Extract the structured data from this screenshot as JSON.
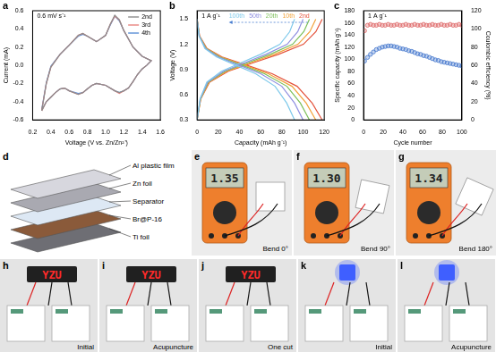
{
  "chart_data": [
    {
      "type": "line",
      "panel_label": "a",
      "annotation": "0.6 mV s⁻¹",
      "x_label": "Voltage (V vs. Zn/Zn²⁺)",
      "y_label": "Current (mA)",
      "x": [
        0.3,
        0.35,
        0.4,
        0.5,
        0.6,
        0.7,
        0.75,
        0.8,
        0.9,
        1.0,
        1.05,
        1.1,
        1.15,
        1.2,
        1.3,
        1.4,
        1.5,
        1.45,
        1.4,
        1.35,
        1.3,
        1.25,
        1.2,
        1.15,
        1.1,
        1.0,
        0.9,
        0.85,
        0.8,
        0.75,
        0.7,
        0.6,
        0.55,
        0.5,
        0.45,
        0.4,
        0.35,
        0.3
      ],
      "series": [
        {
          "name": "2nd",
          "color": "#8c8c8c",
          "values": [
            -0.5,
            -0.2,
            -0.02,
            0.12,
            0.22,
            0.33,
            0.35,
            0.32,
            0.26,
            0.33,
            0.45,
            0.55,
            0.5,
            0.38,
            0.2,
            0.1,
            0.05,
            0.0,
            -0.04,
            -0.1,
            -0.18,
            -0.25,
            -0.28,
            -0.3,
            -0.28,
            -0.22,
            -0.2,
            -0.22,
            -0.26,
            -0.3,
            -0.32,
            -0.28,
            -0.25,
            -0.26,
            -0.3,
            -0.35,
            -0.4,
            -0.5
          ]
        },
        {
          "name": "3rd",
          "color": "#e8837f",
          "values": [
            -0.49,
            -0.2,
            -0.02,
            0.12,
            0.22,
            0.33,
            0.35,
            0.32,
            0.26,
            0.33,
            0.45,
            0.54,
            0.5,
            0.38,
            0.2,
            0.1,
            0.05,
            0.0,
            -0.04,
            -0.1,
            -0.18,
            -0.25,
            -0.28,
            -0.31,
            -0.28,
            -0.22,
            -0.2,
            -0.22,
            -0.26,
            -0.3,
            -0.32,
            -0.28,
            -0.25,
            -0.26,
            -0.3,
            -0.35,
            -0.4,
            -0.5
          ]
        },
        {
          "name": "4th",
          "color": "#5b8fd6",
          "values": [
            -0.48,
            -0.19,
            -0.01,
            0.12,
            0.22,
            0.32,
            0.34,
            0.32,
            0.26,
            0.33,
            0.44,
            0.54,
            0.49,
            0.38,
            0.2,
            0.1,
            0.05,
            0.0,
            -0.04,
            -0.1,
            -0.18,
            -0.25,
            -0.28,
            -0.3,
            -0.28,
            -0.22,
            -0.2,
            -0.22,
            -0.26,
            -0.3,
            -0.31,
            -0.28,
            -0.25,
            -0.26,
            -0.3,
            -0.35,
            -0.4,
            -0.49
          ]
        }
      ],
      "xlim": [
        0.2,
        1.6
      ],
      "xticks": [
        0.2,
        0.4,
        0.6,
        0.8,
        {
          "value": 1,
          "label": "1.0"
        },
        1.2,
        1.4,
        1.6
      ],
      "ylim": [
        -0.6,
        0.6
      ],
      "yticks": [
        -0.6,
        -0.4,
        -0.2,
        {
          "value": 0,
          "label": "0.0"
        },
        0.2,
        0.4,
        0.6
      ],
      "grid": false,
      "legend": "upper right",
      "line_style": "solid"
    },
    {
      "type": "line",
      "panel_label": "b",
      "annotation": "1 A g⁻¹",
      "x_label": "Capacity (mAh g⁻¹)",
      "y_label": "Voltage (V)",
      "series": [
        {
          "name": "100th",
          "color": "#7ec9ea",
          "curves": [
            {
              "x": [
                0,
                1.8,
                7.4,
                18.4,
                36.8,
                55.2,
                73.6,
                84.6,
                92
              ],
              "values": [
                1.5,
                1.3,
                1.15,
                1.05,
                0.95,
                0.85,
                0.7,
                0.5,
                0.3
              ]
            },
            {
              "x": [
                0,
                2.8,
                9.2,
                23,
                41.4,
                59.8,
                78.2,
                87.4,
                92
              ],
              "values": [
                0.3,
                0.55,
                0.75,
                0.88,
                0.98,
                1.08,
                1.2,
                1.35,
                1.5
              ]
            }
          ]
        },
        {
          "name": "50th",
          "color": "#8f8fe0",
          "curves": [
            {
              "x": [
                0,
                2,
                8,
                20,
                40,
                60,
                80,
                92,
                100
              ],
              "values": [
                1.5,
                1.3,
                1.15,
                1.05,
                0.95,
                0.85,
                0.7,
                0.5,
                0.3
              ]
            },
            {
              "x": [
                0,
                3,
                10,
                25,
                45,
                65,
                85,
                95,
                100
              ],
              "values": [
                0.3,
                0.55,
                0.75,
                0.88,
                0.98,
                1.08,
                1.2,
                1.35,
                1.5
              ]
            }
          ]
        },
        {
          "name": "20th",
          "color": "#7cbf5a",
          "curves": [
            {
              "x": [
                0,
                2.1,
                8.5,
                21.2,
                42.4,
                63.6,
                84.8,
                97.5,
                106
              ],
              "values": [
                1.5,
                1.3,
                1.15,
                1.05,
                0.95,
                0.85,
                0.7,
                0.5,
                0.3
              ]
            },
            {
              "x": [
                0,
                3.2,
                10.6,
                26.5,
                47.7,
                68.9,
                90.1,
                100.7,
                106
              ],
              "values": [
                0.3,
                0.55,
                0.75,
                0.88,
                0.98,
                1.08,
                1.2,
                1.35,
                1.5
              ]
            }
          ]
        },
        {
          "name": "10th",
          "color": "#f2a23a",
          "curves": [
            {
              "x": [
                0,
                2.2,
                9,
                22.4,
                44.8,
                67.2,
                89.6,
                103,
                112
              ],
              "values": [
                1.5,
                1.3,
                1.15,
                1.05,
                0.95,
                0.85,
                0.7,
                0.5,
                0.3
              ]
            },
            {
              "x": [
                0,
                3.4,
                11.2,
                28,
                50.4,
                72.8,
                95.2,
                106.4,
                112
              ],
              "values": [
                0.3,
                0.55,
                0.75,
                0.88,
                0.98,
                1.08,
                1.2,
                1.35,
                1.5
              ]
            }
          ]
        },
        {
          "name": "2nd",
          "color": "#e4533c",
          "curves": [
            {
              "x": [
                0,
                2.4,
                9.4,
                23.6,
                47.2,
                70.8,
                94.4,
                108.6,
                118
              ],
              "values": [
                1.5,
                1.3,
                1.15,
                1.05,
                0.95,
                0.85,
                0.7,
                0.5,
                0.3
              ]
            },
            {
              "x": [
                0,
                3.5,
                11.8,
                29.5,
                53.1,
                76.7,
                100.3,
                112.1,
                118
              ],
              "values": [
                0.3,
                0.55,
                0.75,
                0.88,
                0.98,
                1.08,
                1.2,
                1.35,
                1.5
              ]
            }
          ]
        }
      ],
      "xlim": [
        0,
        120
      ],
      "xticks": [
        0,
        20,
        40,
        60,
        80,
        100,
        120
      ],
      "ylim": [
        0.3,
        1.6
      ],
      "yticks": [
        0.3,
        0.6,
        0.9,
        1.2,
        1.5
      ],
      "grid": false,
      "legend": "upper center",
      "line_style": "solid"
    },
    {
      "type": "scatter",
      "panel_label": "c",
      "annotation": "1 A g⁻¹",
      "x_label": "Cycle number",
      "y_label": "Specific capacity (mAh g⁻¹)",
      "y2_label": "Coulombic efficiency (%)",
      "x": [
        1,
        4,
        7,
        10,
        13,
        16,
        19,
        22,
        25,
        28,
        31,
        34,
        37,
        40,
        43,
        46,
        49,
        52,
        55,
        58,
        61,
        64,
        67,
        70,
        73,
        76,
        79,
        82,
        85,
        88,
        91,
        94,
        97,
        100
      ],
      "series": [
        {
          "color": "#4f7fd0",
          "marker": "circle",
          "values": [
            97,
            103,
            108,
            112,
            116,
            118,
            120,
            121,
            122,
            122,
            121,
            120,
            118,
            117,
            116,
            114,
            113,
            111,
            109,
            108,
            106,
            105,
            103,
            101,
            99,
            98,
            96,
            95,
            94,
            93,
            92,
            91,
            90,
            89
          ]
        },
        {
          "color": "#e07070",
          "marker": "circle",
          "axis": "y2",
          "values": [
            98,
            104,
            105,
            104,
            104,
            105,
            104,
            104,
            105,
            104,
            104,
            105,
            104,
            104,
            105,
            104,
            104,
            105,
            104,
            104,
            105,
            104,
            104,
            105,
            104,
            104,
            105,
            104,
            104,
            105,
            104,
            104,
            105,
            104
          ]
        }
      ],
      "xlim": [
        0,
        100
      ],
      "xticks": [
        0,
        20,
        40,
        60,
        80,
        100
      ],
      "ylim": [
        0,
        180
      ],
      "yticks": [
        0,
        20,
        40,
        60,
        80,
        100,
        120,
        140,
        160,
        180
      ],
      "y2lim": [
        0,
        120
      ],
      "y2ticks": [
        0,
        20,
        40,
        60,
        80,
        100,
        120
      ],
      "grid": false
    }
  ],
  "panels": {
    "d": {
      "label": "d",
      "layers": [
        "Al plastic film",
        "Zn foil",
        "Separator",
        "Br@P-16",
        "Ti foil"
      ]
    },
    "bend": [
      {
        "label": "e",
        "reading": "1.35",
        "caption": "Bend 0°"
      },
      {
        "label": "f",
        "reading": "1.30",
        "caption": "Bend 90°"
      },
      {
        "label": "g",
        "reading": "1.34",
        "caption": "Bend 180°"
      }
    ],
    "devices": [
      {
        "label": "h",
        "display": "YZU",
        "caption": "Initial"
      },
      {
        "label": "i",
        "display": "YZU",
        "caption": "Acupuncture"
      },
      {
        "label": "j",
        "display": "YZU",
        "caption": "One cut"
      },
      {
        "label": "k",
        "led_color": "#3f5fff",
        "caption": "Initial"
      },
      {
        "label": "l",
        "led_color": "#3f5fff",
        "caption": "Acupuncture"
      }
    ]
  }
}
